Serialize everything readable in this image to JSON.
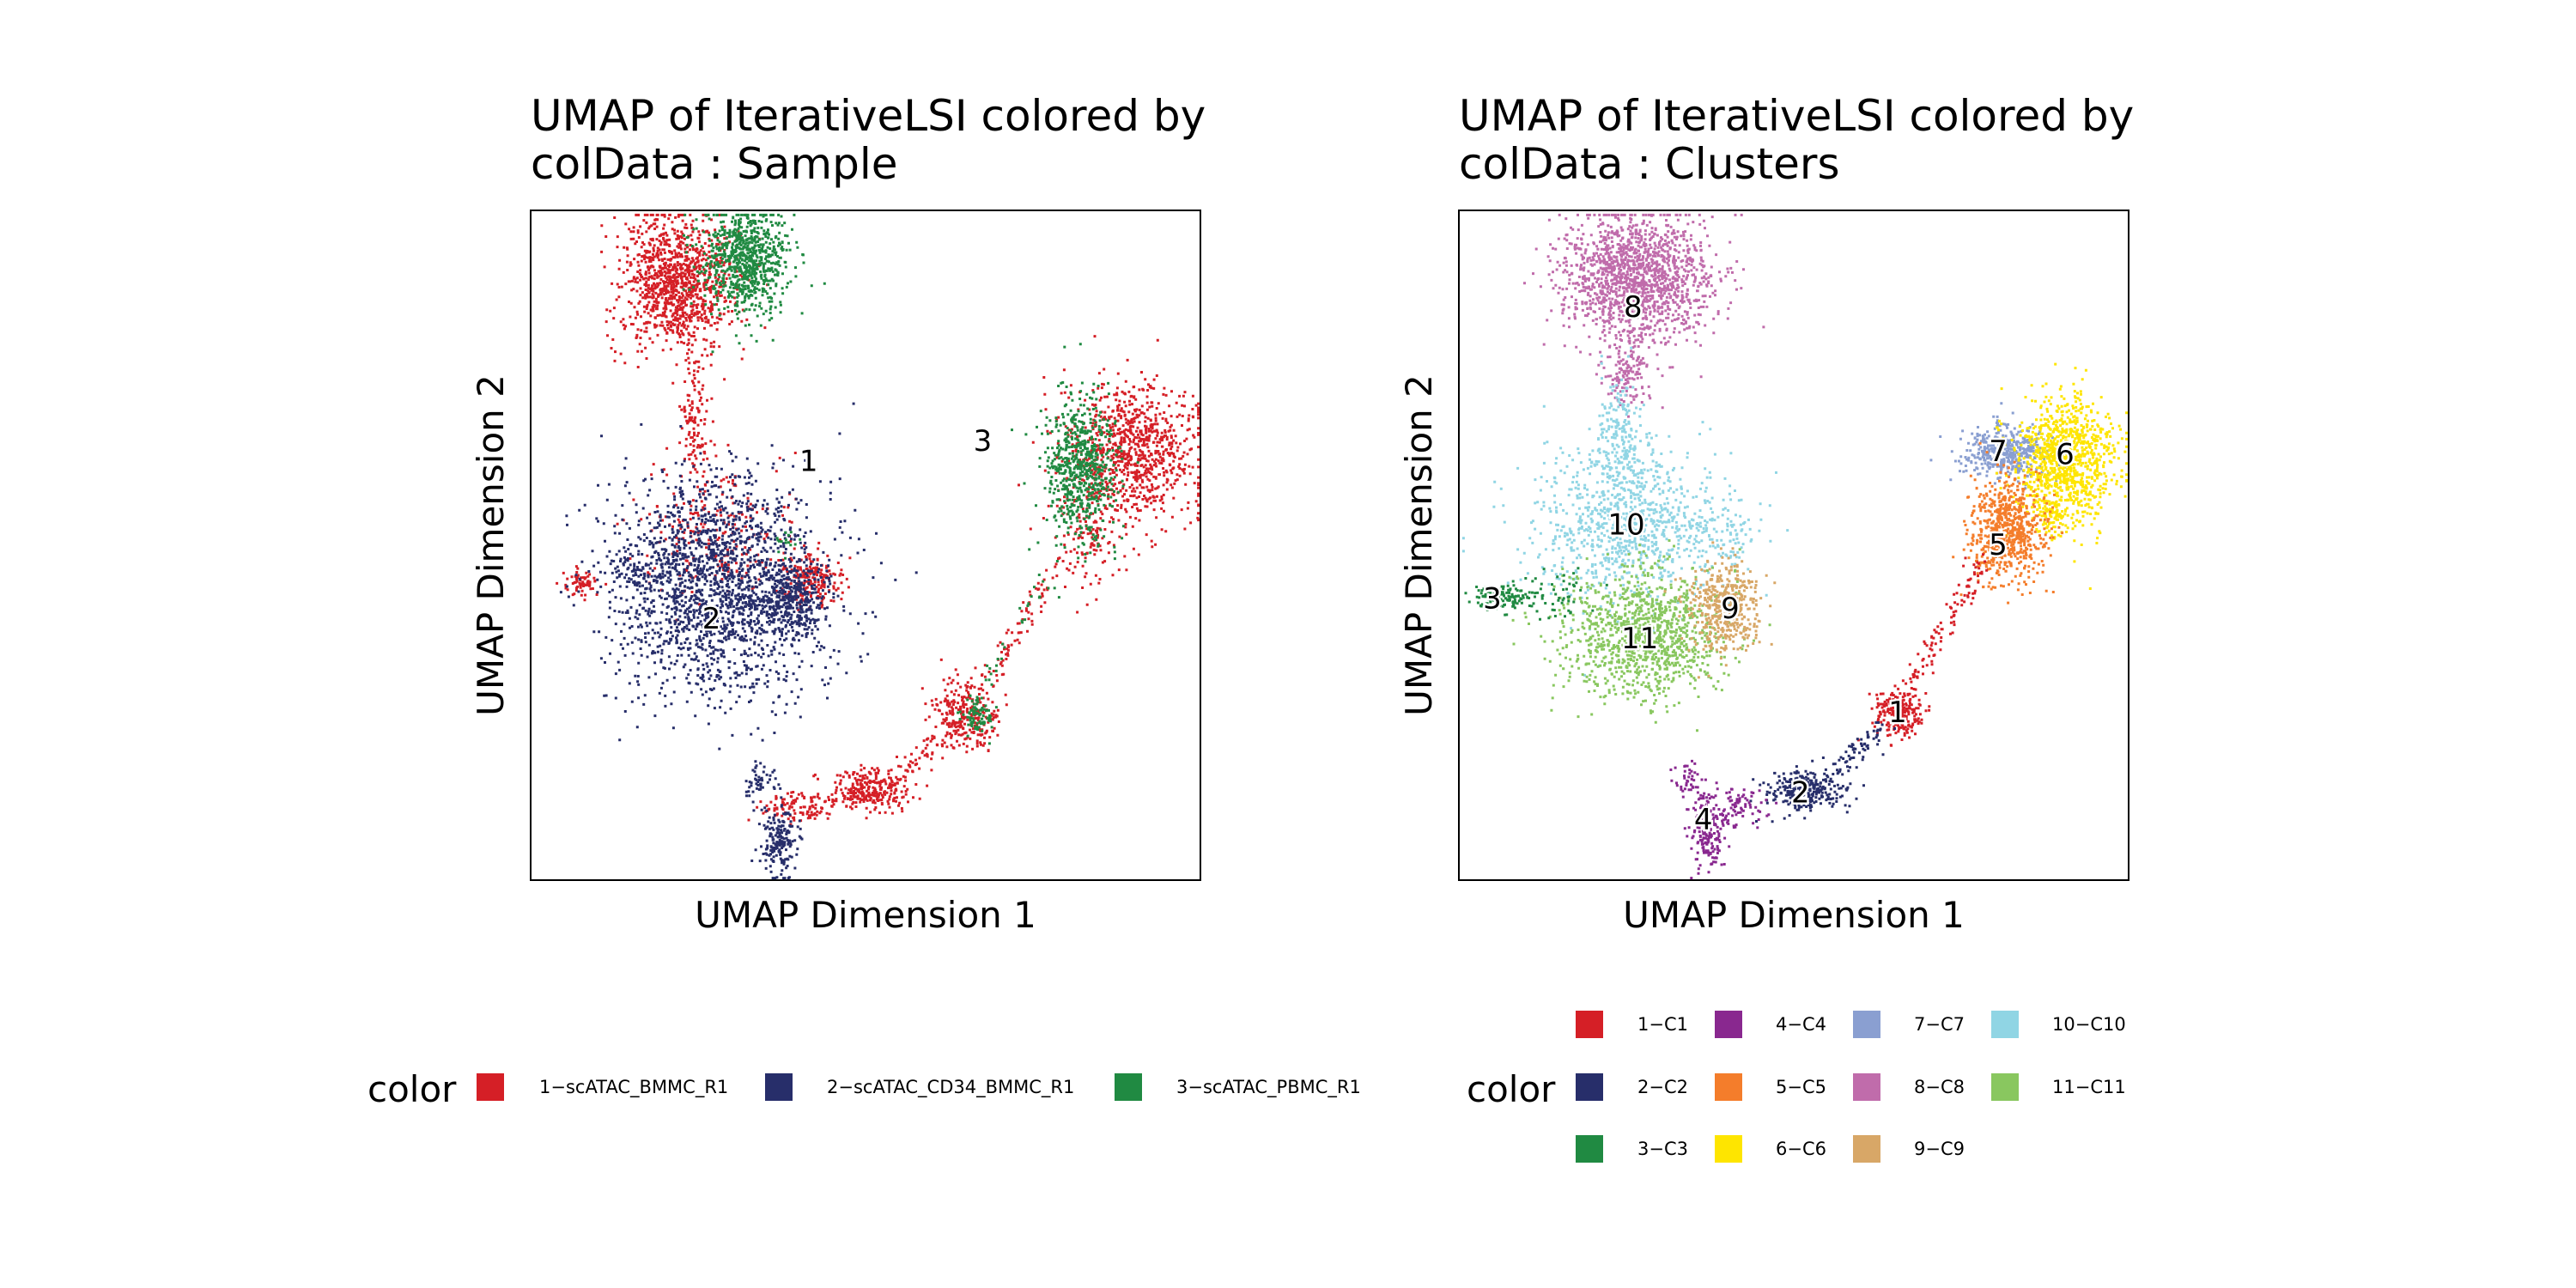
{
  "colors": {
    "1": "#D51F26",
    "2": "#272E6A",
    "3": "#208A42",
    "4": "#89288F",
    "5": "#F47D2B",
    "6": "#FEE500",
    "7": "#8A9FD1",
    "8": "#C06CAB",
    "9": "#D8A767",
    "10": "#90D5E4",
    "11": "#89C75F"
  },
  "chart_data": [
    {
      "type": "scatter",
      "title_line1": "UMAP of IterativeLSI  colored by",
      "title_line2": "colData :  Sample",
      "xlabel": "UMAP Dimension 1",
      "ylabel": "UMAP Dimension 2",
      "xlim": [
        -10,
        10
      ],
      "ylim": [
        -10,
        10
      ],
      "grid": false,
      "legend": {
        "title": "color",
        "placement": "bottom",
        "entries": [
          {
            "label": "1−scATAC_BMMC_R1",
            "color": "#D51F26"
          },
          {
            "label": "2−scATAC_CD34_BMMC_R1",
            "color": "#272E6A"
          },
          {
            "label": "3−scATAC_PBMC_R1",
            "color": "#208A42"
          }
        ]
      },
      "annotations": [
        {
          "text": "1",
          "x": -1.7,
          "y": 2.5
        },
        {
          "text": "2",
          "x": -4.6,
          "y": -2.2
        },
        {
          "text": "3",
          "x": 3.5,
          "y": 3.1
        }
      ],
      "series": [
        {
          "sample": "1",
          "color": "#D51F26",
          "groups": [
            {
              "cx": -5.7,
              "cy": 7.9,
              "sx": 0.85,
              "sy": 1.0,
              "n": 1100
            },
            {
              "cx": -5.1,
              "cy": 3.6,
              "sx": 0.22,
              "sy": 1.2,
              "n": 130
            },
            {
              "cx": -4.5,
              "cy": 0.3,
              "sx": 1.2,
              "sy": 1.1,
              "n": 220
            },
            {
              "cx": -1.6,
              "cy": -1.0,
              "sx": 0.45,
              "sy": 0.4,
              "n": 200
            },
            {
              "cx": 8.0,
              "cy": 2.8,
              "sx": 1.0,
              "sy": 1.0,
              "n": 900
            },
            {
              "cx": 6.6,
              "cy": 0.5,
              "sx": 0.5,
              "sy": 0.8,
              "n": 140
            },
            {
              "cx": 3.0,
              "cy": -5.0,
              "sx": 0.5,
              "sy": 0.5,
              "n": 260
            },
            {
              "cx": 0.1,
              "cy": -7.3,
              "sx": 0.6,
              "sy": 0.3,
              "n": 280
            },
            {
              "cx": -2.0,
              "cy": -7.8,
              "sx": 0.6,
              "sy": 0.25,
              "n": 110
            },
            {
              "cx": -8.6,
              "cy": -1.1,
              "sx": 0.25,
              "sy": 0.2,
              "n": 60
            },
            {
              "x0": 5.7,
              "y0": -0.5,
              "x1": 3.5,
              "y1": -4.2,
              "n": 80,
              "jit": 0.18
            },
            {
              "x0": 2.6,
              "y0": -5.4,
              "x1": 1.0,
              "y1": -6.9,
              "n": 60,
              "jit": 0.18
            }
          ]
        },
        {
          "sample": "2",
          "color": "#272E6A",
          "groups": [
            {
              "cx": -4.4,
              "cy": -1.2,
              "sx": 1.55,
              "sy": 1.65,
              "n": 2000
            },
            {
              "cx": -2.2,
              "cy": -1.6,
              "sx": 0.5,
              "sy": 0.5,
              "n": 300
            },
            {
              "cx": -6.8,
              "cy": -0.8,
              "sx": 0.6,
              "sy": 0.3,
              "n": 80
            },
            {
              "cx": -2.6,
              "cy": -8.8,
              "sx": 0.25,
              "sy": 0.5,
              "n": 180
            },
            {
              "cx": -3.2,
              "cy": -7.0,
              "sx": 0.25,
              "sy": 0.3,
              "n": 50
            }
          ]
        },
        {
          "sample": "3",
          "color": "#208A42",
          "groups": [
            {
              "cx": -3.6,
              "cy": 8.6,
              "sx": 0.65,
              "sy": 0.85,
              "n": 800
            },
            {
              "cx": 6.4,
              "cy": 2.3,
              "sx": 0.55,
              "sy": 1.1,
              "n": 650
            },
            {
              "cx": 3.3,
              "cy": -5.0,
              "sx": 0.25,
              "sy": 0.3,
              "n": 80
            },
            {
              "cx": -2.4,
              "cy": 0.1,
              "sx": 0.2,
              "sy": 0.2,
              "n": 15
            },
            {
              "x0": 5.3,
              "y0": -1.0,
              "x1": 3.6,
              "y1": -4.0,
              "n": 25,
              "jit": 0.15
            }
          ]
        }
      ]
    },
    {
      "type": "scatter",
      "title_line1": "UMAP of IterativeLSI  colored by",
      "title_line2": "colData :  Clusters",
      "xlabel": "UMAP Dimension 1",
      "ylabel": "UMAP Dimension 2",
      "xlim": [
        -10,
        10
      ],
      "ylim": [
        -10,
        10
      ],
      "grid": false,
      "legend": {
        "title": "color",
        "placement": "bottom",
        "entries": [
          {
            "label": "1−C1",
            "color": "#D51F26"
          },
          {
            "label": "4−C4",
            "color": "#89288F"
          },
          {
            "label": "7−C7",
            "color": "#8A9FD1"
          },
          {
            "label": "10−C10",
            "color": "#90D5E4"
          },
          {
            "label": "2−C2",
            "color": "#272E6A"
          },
          {
            "label": "5−C5",
            "color": "#F47D2B"
          },
          {
            "label": "8−C8",
            "color": "#C06CAB"
          },
          {
            "label": "11−C11",
            "color": "#89C75F"
          },
          {
            "label": "3−C3",
            "color": "#208A42"
          },
          {
            "label": "6−C6",
            "color": "#FEE500"
          },
          {
            "label": "9−C9",
            "color": "#D8A767"
          }
        ]
      },
      "annotations": [
        {
          "text": "8",
          "x": -4.8,
          "y": 7.1
        },
        {
          "text": "7",
          "x": 6.1,
          "y": 2.8
        },
        {
          "text": "6",
          "x": 8.1,
          "y": 2.7
        },
        {
          "text": "10",
          "x": -5.0,
          "y": 0.6
        },
        {
          "text": "5",
          "x": 6.1,
          "y": 0.0
        },
        {
          "text": "3",
          "x": -9.0,
          "y": -1.6
        },
        {
          "text": "9",
          "x": -1.9,
          "y": -1.9
        },
        {
          "text": "11",
          "x": -4.6,
          "y": -2.8
        },
        {
          "text": "1",
          "x": 3.1,
          "y": -5.0
        },
        {
          "text": "2",
          "x": 0.2,
          "y": -7.4
        },
        {
          "text": "4",
          "x": -2.7,
          "y": -8.2
        }
      ],
      "series": [
        {
          "cluster": "8",
          "color": "#C06CAB",
          "groups": [
            {
              "cx": -4.7,
              "cy": 8.0,
              "sx": 1.1,
              "sy": 0.95,
              "n": 1500
            },
            {
              "cx": -5.0,
              "cy": 5.2,
              "sx": 0.35,
              "sy": 0.5,
              "n": 130
            }
          ]
        },
        {
          "cluster": "10",
          "color": "#90D5E4",
          "groups": [
            {
              "cx": -5.0,
              "cy": 0.7,
              "sx": 1.35,
              "sy": 1.2,
              "n": 900
            },
            {
              "cx": -5.2,
              "cy": 3.2,
              "sx": 0.35,
              "sy": 0.9,
              "n": 200
            },
            {
              "cx": -2.3,
              "cy": 0.3,
              "sx": 0.5,
              "sy": 0.4,
              "n": 90
            }
          ]
        },
        {
          "cluster": "11",
          "color": "#89C75F",
          "groups": [
            {
              "cx": -4.5,
              "cy": -2.6,
              "sx": 1.2,
              "sy": 0.95,
              "n": 1100
            }
          ]
        },
        {
          "cluster": "9",
          "color": "#D8A767",
          "groups": [
            {
              "cx": -2.1,
              "cy": -1.8,
              "sx": 0.55,
              "sy": 0.7,
              "n": 450
            }
          ]
        },
        {
          "cluster": "3",
          "color": "#208A42",
          "groups": [
            {
              "cx": -8.8,
              "cy": -1.5,
              "sx": 0.4,
              "sy": 0.2,
              "n": 120
            },
            {
              "cx": -7.2,
              "cy": -1.4,
              "sx": 0.55,
              "sy": 0.35,
              "n": 60
            }
          ]
        },
        {
          "cluster": "7",
          "color": "#8A9FD1",
          "groups": [
            {
              "cx": 6.3,
              "cy": 2.8,
              "sx": 0.65,
              "sy": 0.4,
              "n": 450
            }
          ]
        },
        {
          "cluster": "6",
          "color": "#FEE500",
          "groups": [
            {
              "cx": 8.1,
              "cy": 2.6,
              "sx": 0.75,
              "sy": 0.95,
              "n": 1000
            },
            {
              "cx": 7.6,
              "cy": 1.0,
              "sx": 0.3,
              "sy": 0.4,
              "n": 80
            }
          ]
        },
        {
          "cluster": "5",
          "color": "#F47D2B",
          "groups": [
            {
              "cx": 6.3,
              "cy": 0.5,
              "sx": 0.55,
              "sy": 0.75,
              "n": 700
            }
          ]
        },
        {
          "cluster": "1",
          "color": "#D51F26",
          "groups": [
            {
              "cx": 3.1,
              "cy": -5.0,
              "sx": 0.35,
              "sy": 0.35,
              "n": 230
            },
            {
              "x0": 5.6,
              "y0": -0.5,
              "x1": 3.4,
              "y1": -4.3,
              "n": 110,
              "jit": 0.18
            }
          ]
        },
        {
          "cluster": "2",
          "color": "#272E6A",
          "groups": [
            {
              "cx": 0.3,
              "cy": -7.3,
              "sx": 0.55,
              "sy": 0.3,
              "n": 280
            },
            {
              "x0": 2.7,
              "y0": -5.3,
              "x1": 1.0,
              "y1": -6.9,
              "n": 70,
              "jit": 0.18
            }
          ]
        },
        {
          "cluster": "4",
          "color": "#89288F",
          "groups": [
            {
              "cx": -2.6,
              "cy": -8.5,
              "sx": 0.25,
              "sy": 0.6,
              "n": 180
            },
            {
              "cx": -1.6,
              "cy": -7.8,
              "sx": 0.5,
              "sy": 0.3,
              "n": 80
            },
            {
              "cx": -3.2,
              "cy": -7.0,
              "sx": 0.2,
              "sy": 0.3,
              "n": 40
            }
          ]
        }
      ]
    }
  ]
}
